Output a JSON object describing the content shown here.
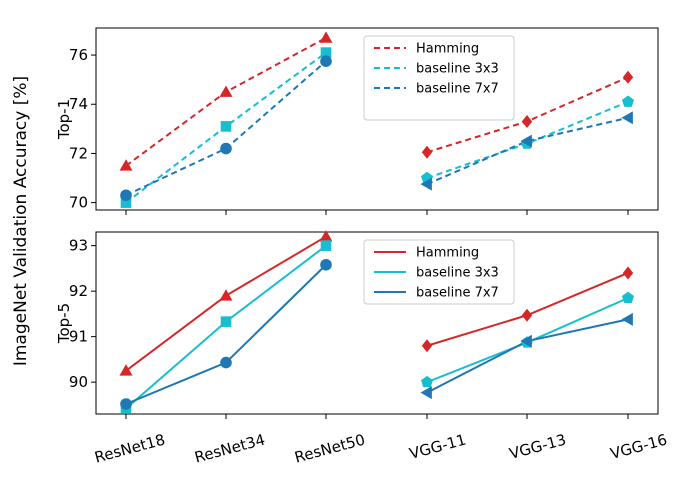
{
  "chart_data": {
    "type": "line",
    "ylabel": "ImageNet Validation Accuracy [%]",
    "categories": [
      "ResNet18",
      "ResNet34",
      "ResNet50",
      "VGG-11",
      "VGG-13",
      "VGG-16"
    ],
    "groups": [
      [
        0,
        1,
        2
      ],
      [
        3,
        4,
        5
      ]
    ],
    "colors": {
      "Hamming": "#d62728",
      "baseline 3x3": "#17becf",
      "baseline 7x7": "#1f77b4"
    },
    "panels": [
      {
        "ylabel": "Top-1",
        "ylim": [
          69.7,
          77.1
        ],
        "yticks": [
          70,
          72,
          74,
          76
        ],
        "line_style": "dashed",
        "legend_position": "top-center",
        "series": [
          {
            "name": "Hamming",
            "values": [
              71.5,
              74.5,
              76.7,
              72.05,
              73.3,
              75.1
            ],
            "markers": [
              "triangle",
              "triangle",
              "triangle",
              "diamond",
              "diamond",
              "diamond"
            ]
          },
          {
            "name": "baseline 3x3",
            "values": [
              70.0,
              73.1,
              76.1,
              71.0,
              72.4,
              74.1
            ],
            "markers": [
              "square",
              "square",
              "square",
              "pentagon",
              "pentagon",
              "pentagon"
            ]
          },
          {
            "name": "baseline 7x7",
            "values": [
              70.3,
              72.2,
              75.75,
              70.75,
              72.5,
              73.45
            ],
            "markers": [
              "circle",
              "circle",
              "circle",
              "triangle-left",
              "triangle-left",
              "triangle-left"
            ]
          }
        ]
      },
      {
        "ylabel": "Top-5",
        "ylim": [
          89.3,
          93.3
        ],
        "yticks": [
          90,
          91,
          92,
          93
        ],
        "line_style": "solid",
        "legend_position": "top-center",
        "series": [
          {
            "name": "Hamming",
            "values": [
              90.25,
              91.9,
              93.2,
              90.8,
              91.47,
              92.4
            ],
            "markers": [
              "triangle",
              "triangle",
              "triangle",
              "diamond",
              "diamond",
              "diamond"
            ]
          },
          {
            "name": "baseline 3x3",
            "values": [
              89.42,
              91.33,
              93.0,
              90.0,
              90.87,
              91.85
            ],
            "markers": [
              "square",
              "square",
              "square",
              "pentagon",
              "pentagon",
              "pentagon"
            ]
          },
          {
            "name": "baseline 7x7",
            "values": [
              89.52,
              90.43,
              92.58,
              89.77,
              90.9,
              91.38
            ],
            "markers": [
              "circle",
              "circle",
              "circle",
              "triangle-left",
              "triangle-left",
              "triangle-left"
            ]
          }
        ]
      }
    ]
  }
}
